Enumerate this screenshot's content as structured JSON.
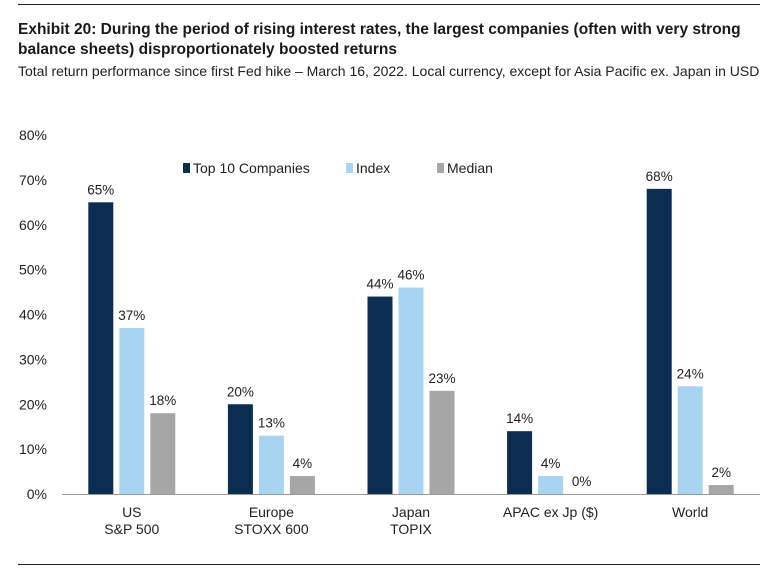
{
  "header": {
    "title": "Exhibit 20: During the period of rising interest rates, the largest companies (often with very strong balance sheets) disproportionately boosted returns",
    "subtitle": "Total return performance since first Fed hike – March 16, 2022. Local currency, except for Asia Pacific ex. Japan in USD"
  },
  "colors": {
    "top10": "#0b2d52",
    "index": "#a8d4f2",
    "median": "#a6a6a6"
  },
  "chart_data": {
    "type": "bar",
    "title": "",
    "xlabel": "",
    "ylabel": "",
    "ylim": [
      0,
      80
    ],
    "yticks": [
      "0%",
      "10%",
      "20%",
      "30%",
      "40%",
      "50%",
      "60%",
      "70%",
      "80%"
    ],
    "grid": false,
    "legend_position": "top-center",
    "categories": [
      [
        "US",
        "S&P 500"
      ],
      [
        "Europe",
        "STOXX 600"
      ],
      [
        "Japan",
        "TOPIX"
      ],
      [
        "APAC ex Jp ($)"
      ],
      [
        "World"
      ]
    ],
    "series": [
      {
        "name": "Top 10 Companies",
        "values": [
          65,
          20,
          44,
          14,
          68
        ],
        "labels": [
          "65%",
          "20%",
          "44%",
          "14%",
          "68%"
        ]
      },
      {
        "name": "Index",
        "values": [
          37,
          13,
          46,
          4,
          24
        ],
        "labels": [
          "37%",
          "13%",
          "46%",
          "4%",
          "24%"
        ]
      },
      {
        "name": "Median",
        "values": [
          18,
          4,
          23,
          0,
          2
        ],
        "labels": [
          "18%",
          "4%",
          "23%",
          "0%",
          "2%"
        ]
      }
    ]
  }
}
